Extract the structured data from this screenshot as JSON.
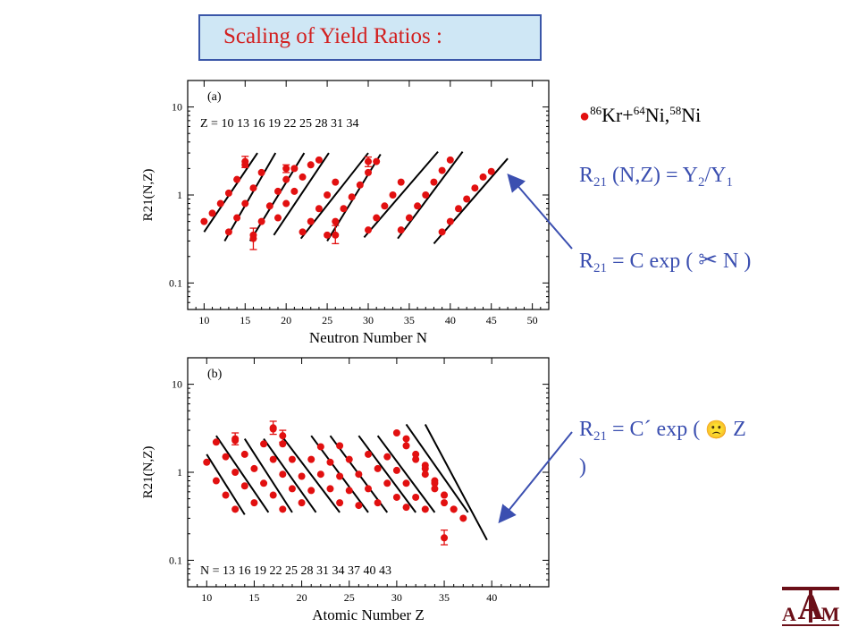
{
  "slide": {
    "title": "Scaling of Yield Ratios :",
    "reaction": {
      "a": "86",
      "b": "Kr+",
      "c": "64",
      "d": "Ni,",
      "e": "58",
      "f": "Ni"
    },
    "eq1": {
      "a": "R",
      "b": "21",
      "c": " (N,Z) = Y",
      "d": "2",
      "e": "/Y",
      "f": "1"
    },
    "eq2": {
      "a": "R",
      "b": "21",
      "c": " = C exp ( ",
      "d": "✂",
      "e": " N )"
    },
    "eq3": {
      "a": "R",
      "b": "21",
      "c": " = C´ exp ( ",
      "d": "🙁",
      "e": " Z"
    },
    "eq3_close": ")",
    "accent_color": "#3b4fb0",
    "title_color": "#d22020",
    "logo": "texas-am-logo"
  },
  "chart_data": [
    {
      "type": "scatter",
      "panel": "(a)",
      "xlabel": "Neutron Number N",
      "ylabel": "R21(N,Z)",
      "xlim": [
        8,
        52
      ],
      "ylim": [
        0.05,
        20
      ],
      "yscale": "log",
      "xticks": [
        10,
        15,
        20,
        25,
        30,
        35,
        40,
        45,
        50
      ],
      "yticks": [
        {
          "v": 0.1,
          "l": "0.1"
        },
        {
          "v": 1,
          "l": "1"
        },
        {
          "v": 10,
          "l": "10"
        }
      ],
      "group_label": "Z = 10  13  16      19    22    25    28    31    34",
      "marker_color": "#e21010",
      "series": [
        {
          "z": 10,
          "x": [
            10,
            11,
            12,
            13,
            14,
            15
          ],
          "y": [
            0.5,
            0.62,
            0.8,
            1.05,
            1.5,
            2.2
          ]
        },
        {
          "z": 13,
          "x": [
            13,
            14,
            15,
            16,
            17
          ],
          "y": [
            0.38,
            0.55,
            0.8,
            1.2,
            1.8
          ]
        },
        {
          "z": 16,
          "x": [
            16,
            17,
            18,
            19,
            20,
            21
          ],
          "y": [
            0.35,
            0.5,
            0.75,
            1.1,
            1.5,
            2.0
          ]
        },
        {
          "z": 19,
          "x": [
            19,
            20,
            21,
            22,
            23,
            24
          ],
          "y": [
            0.55,
            0.8,
            1.1,
            1.6,
            2.2,
            2.5
          ]
        },
        {
          "z": 22,
          "x": [
            22,
            23,
            24,
            25,
            26
          ],
          "y": [
            0.38,
            0.5,
            0.7,
            1.0,
            1.4
          ]
        },
        {
          "z": 25,
          "x": [
            25,
            26,
            27,
            28,
            29,
            30,
            31
          ],
          "y": [
            0.35,
            0.5,
            0.7,
            0.95,
            1.3,
            1.8,
            2.4
          ]
        },
        {
          "z": 28,
          "x": [
            30,
            31,
            32,
            33,
            34
          ],
          "y": [
            0.4,
            0.55,
            0.75,
            1.0,
            1.4
          ]
        },
        {
          "z": 31,
          "x": [
            34,
            35,
            36,
            37,
            38,
            39,
            40
          ],
          "y": [
            0.4,
            0.55,
            0.75,
            1.0,
            1.4,
            1.9,
            2.5
          ]
        },
        {
          "z": 34,
          "x": [
            39,
            40,
            41,
            42,
            43,
            44,
            45
          ],
          "y": [
            0.38,
            0.5,
            0.7,
            0.9,
            1.2,
            1.6,
            1.85
          ]
        }
      ],
      "errbars": [
        {
          "x": 15,
          "y": 2.4,
          "lo": 2.05,
          "hi": 2.75
        },
        {
          "x": 16,
          "y": 0.32,
          "lo": 0.24,
          "hi": 0.42
        },
        {
          "x": 20,
          "y": 2.0,
          "lo": 1.8,
          "hi": 2.2
        },
        {
          "x": 26,
          "y": 0.35,
          "lo": 0.28,
          "hi": 0.45
        },
        {
          "x": 30,
          "y": 2.4,
          "lo": 2.1,
          "hi": 2.7
        }
      ],
      "fit_lines": [
        [
          [
            10,
            0.38
          ],
          [
            16.5,
            3.0
          ]
        ],
        [
          [
            12.5,
            0.3
          ],
          [
            18.7,
            3.0
          ]
        ],
        [
          [
            15.6,
            0.3
          ],
          [
            22.2,
            3.0
          ]
        ],
        [
          [
            18.5,
            0.35
          ],
          [
            25.2,
            3.0
          ]
        ],
        [
          [
            21.8,
            0.32
          ],
          [
            30,
            3.0
          ]
        ],
        [
          [
            25,
            0.3
          ],
          [
            31.5,
            2.9
          ]
        ],
        [
          [
            29.5,
            0.33
          ],
          [
            38.5,
            3.1
          ]
        ],
        [
          [
            33.6,
            0.32
          ],
          [
            41.5,
            3.1
          ]
        ],
        [
          [
            38,
            0.28
          ],
          [
            47,
            2.6
          ]
        ]
      ]
    },
    {
      "type": "scatter",
      "panel": "(b)",
      "xlabel": "Atomic Number Z",
      "ylabel": "R21(N,Z)",
      "xlim": [
        8,
        46
      ],
      "ylim": [
        0.05,
        20
      ],
      "yscale": "log",
      "xticks": [
        10,
        15,
        20,
        25,
        30,
        35,
        40
      ],
      "yticks": [
        {
          "v": 0.1,
          "l": "0.1"
        },
        {
          "v": 1,
          "l": "1"
        },
        {
          "v": 10,
          "l": "10"
        }
      ],
      "group_label": "N =  13  16  19  22  25  28  31  34  37  40  43",
      "marker_color": "#e21010",
      "series": [
        {
          "x": [
            10,
            11,
            12,
            13
          ],
          "y": [
            1.3,
            0.8,
            0.55,
            0.38
          ]
        },
        {
          "x": [
            11,
            12,
            13,
            14,
            15
          ],
          "y": [
            2.2,
            1.5,
            1.0,
            0.7,
            0.45
          ]
        },
        {
          "x": [
            13,
            14,
            15,
            16,
            17,
            18
          ],
          "y": [
            2.3,
            1.6,
            1.1,
            0.75,
            0.55,
            0.38
          ]
        },
        {
          "x": [
            16,
            17,
            18,
            19,
            20
          ],
          "y": [
            2.1,
            1.4,
            0.95,
            0.65,
            0.45
          ]
        },
        {
          "x": [
            17,
            18,
            19,
            20,
            21
          ],
          "y": [
            3.1,
            2.1,
            1.4,
            0.9,
            0.62
          ]
        },
        {
          "x": [
            21,
            22,
            23,
            24
          ],
          "y": [
            1.4,
            0.95,
            0.65,
            0.45
          ]
        },
        {
          "x": [
            22,
            23,
            24,
            25,
            26
          ],
          "y": [
            1.95,
            1.3,
            0.9,
            0.62,
            0.42
          ]
        },
        {
          "x": [
            24,
            25,
            26,
            27,
            28
          ],
          "y": [
            2.0,
            1.4,
            0.95,
            0.65,
            0.45
          ]
        },
        {
          "x": [
            27,
            28,
            29,
            30,
            31
          ],
          "y": [
            1.6,
            1.1,
            0.75,
            0.52,
            0.4
          ]
        },
        {
          "x": [
            29,
            30,
            31,
            32,
            33
          ],
          "y": [
            1.5,
            1.05,
            0.75,
            0.52,
            0.38
          ]
        },
        {
          "x": [
            30,
            31,
            32,
            33,
            34,
            35
          ],
          "y": [
            2.8,
            2.0,
            1.4,
            0.95,
            0.65,
            0.45
          ]
        },
        {
          "x": [
            31,
            32,
            33,
            34,
            35,
            36
          ],
          "y": [
            2.4,
            1.6,
            1.1,
            0.75,
            0.55,
            0.38
          ]
        },
        {
          "x": [
            33,
            34,
            35,
            36,
            37
          ],
          "y": [
            1.2,
            0.8,
            0.55,
            0.38,
            0.3
          ]
        }
      ],
      "errbars": [
        {
          "x": 13,
          "y": 2.4,
          "lo": 2.05,
          "hi": 2.8
        },
        {
          "x": 17,
          "y": 3.2,
          "lo": 2.7,
          "hi": 3.8
        },
        {
          "x": 18,
          "y": 2.6,
          "lo": 2.2,
          "hi": 3.0
        },
        {
          "x": 35,
          "y": 0.18,
          "lo": 0.15,
          "hi": 0.22
        }
      ],
      "fit_lines": [
        [
          [
            10,
            1.6
          ],
          [
            14,
            0.33
          ]
        ],
        [
          [
            11,
            2.6
          ],
          [
            16.5,
            0.35
          ]
        ],
        [
          [
            14,
            2.4
          ],
          [
            19,
            0.35
          ]
        ],
        [
          [
            16,
            2.4
          ],
          [
            21.5,
            0.35
          ]
        ],
        [
          [
            18,
            2.5
          ],
          [
            24,
            0.35
          ]
        ],
        [
          [
            21,
            2.6
          ],
          [
            27,
            0.35
          ]
        ],
        [
          [
            23,
            2.6
          ],
          [
            29,
            0.35
          ]
        ],
        [
          [
            26,
            2.6
          ],
          [
            32,
            0.35
          ]
        ],
        [
          [
            28,
            2.6
          ],
          [
            34,
            0.35
          ]
        ],
        [
          [
            31,
            3.5
          ],
          [
            37.5,
            0.35
          ]
        ],
        [
          [
            33,
            3.5
          ],
          [
            39.5,
            0.17
          ]
        ]
      ]
    }
  ]
}
